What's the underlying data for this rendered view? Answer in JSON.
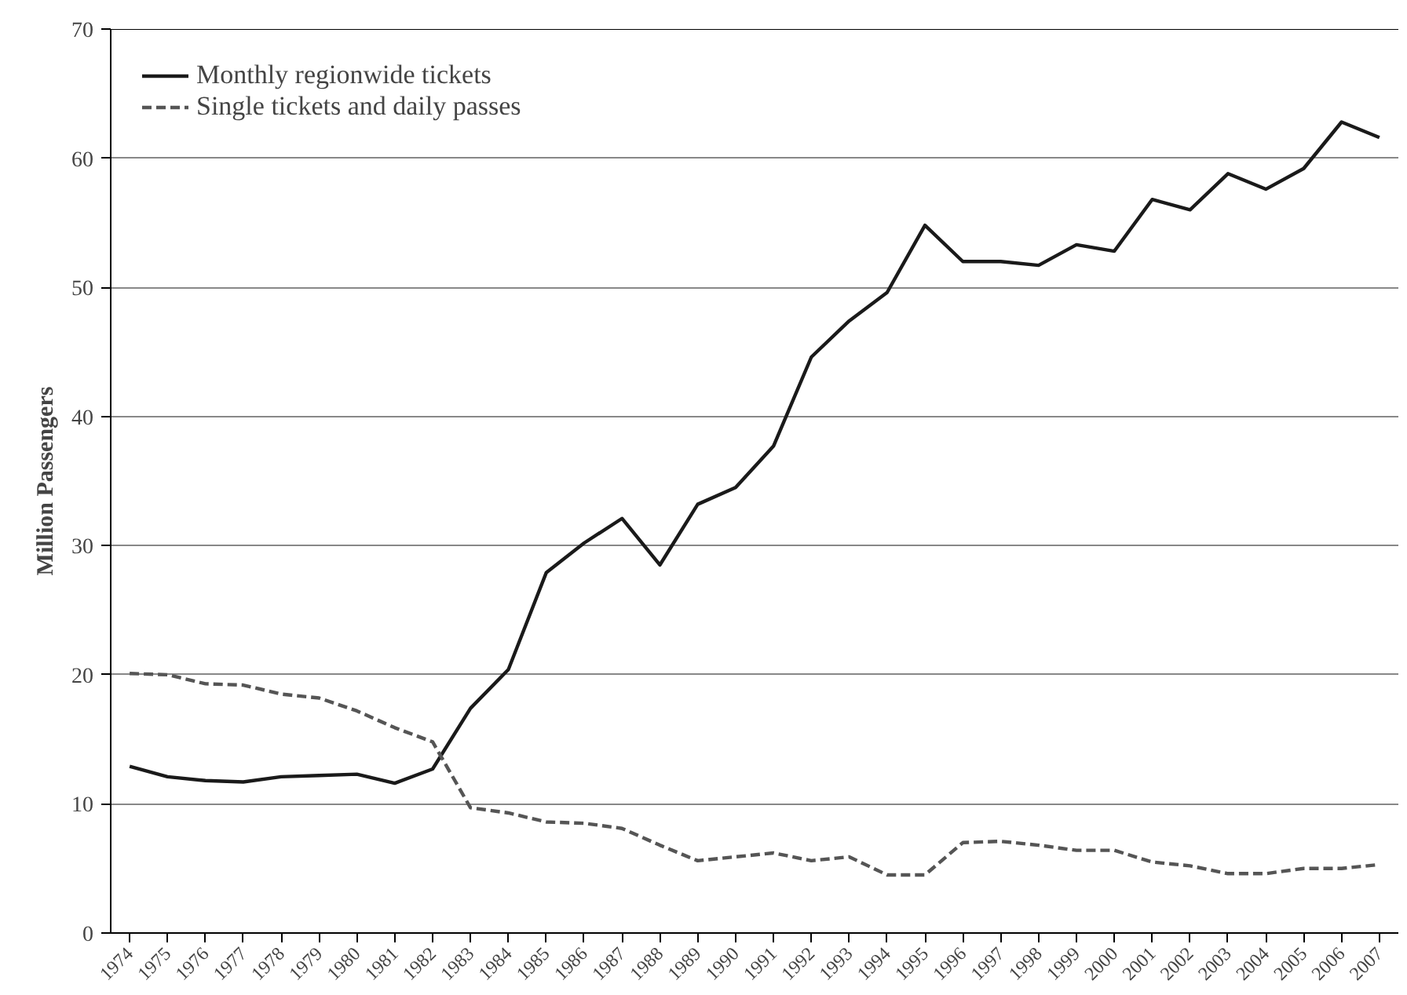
{
  "chart_data": {
    "type": "line",
    "ylabel": "Million Passengers",
    "categories": [
      "1974",
      "1975",
      "1976",
      "1977",
      "1978",
      "1979",
      "1980",
      "1981",
      "1982",
      "1983",
      "1984",
      "1985",
      "1986",
      "1987",
      "1988",
      "1989",
      "1990",
      "1991",
      "1992",
      "1993",
      "1994",
      "1995",
      "1996",
      "1997",
      "1998",
      "1999",
      "2000",
      "2001",
      "2002",
      "2003",
      "2004",
      "2005",
      "2006",
      "2007"
    ],
    "series": [
      {
        "name": "Monthly regionwide tickets",
        "color": "#1a1a1a",
        "line_style": "solid",
        "values": [
          12.9,
          12.1,
          11.8,
          11.7,
          12.1,
          12.2,
          12.3,
          11.6,
          12.7,
          17.4,
          20.4,
          27.9,
          30.2,
          32.1,
          28.5,
          33.2,
          34.5,
          37.7,
          44.6,
          47.4,
          49.6,
          54.8,
          52.0,
          52.0,
          51.7,
          53.3,
          52.8,
          56.8,
          56.0,
          58.8,
          57.6,
          59.2,
          62.8,
          61.6
        ]
      },
      {
        "name": "Single tickets and daily passes",
        "color": "#555555",
        "line_style": "dashed",
        "values": [
          20.1,
          20.0,
          19.3,
          19.2,
          18.5,
          18.2,
          17.2,
          15.9,
          14.8,
          9.7,
          9.3,
          8.6,
          8.5,
          8.1,
          6.8,
          5.6,
          5.9,
          6.2,
          5.6,
          5.9,
          4.5,
          4.5,
          7.0,
          7.1,
          6.8,
          6.4,
          6.4,
          5.5,
          5.2,
          4.6,
          4.6,
          5.0,
          5.0,
          5.3
        ]
      }
    ],
    "ylim": [
      0,
      70
    ],
    "yticks": [
      0,
      10,
      20,
      30,
      40,
      50,
      60,
      70
    ],
    "grid": "y",
    "legend": "top left"
  }
}
